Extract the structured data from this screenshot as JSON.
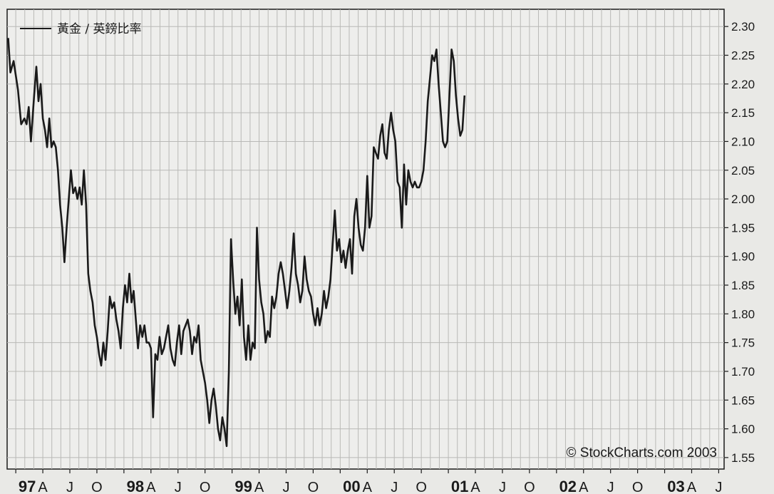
{
  "chart_data": {
    "type": "line",
    "legend": {
      "label": "黃金 / 英鎊比率",
      "position": "top-left"
    },
    "copyright": "© StockCharts.com 2003",
    "grid": true,
    "y_axis": {
      "position": "right",
      "ylim": [
        1.53,
        2.33
      ],
      "ticks": [
        "1.55",
        "1.60",
        "1.65",
        "1.70",
        "1.75",
        "1.80",
        "1.85",
        "1.90",
        "1.95",
        "2.00",
        "2.05",
        "2.10",
        "2.15",
        "2.20",
        "2.25",
        "2.30"
      ]
    },
    "x_axis": {
      "labels": [
        {
          "t": 1997.0,
          "label": "97",
          "year": true
        },
        {
          "t": 1997.25,
          "label": "A"
        },
        {
          "t": 1997.5,
          "label": "J"
        },
        {
          "t": 1997.75,
          "label": "O"
        },
        {
          "t": 1998.0,
          "label": "98",
          "year": true
        },
        {
          "t": 1998.25,
          "label": "A"
        },
        {
          "t": 1998.5,
          "label": "J"
        },
        {
          "t": 1998.75,
          "label": "O"
        },
        {
          "t": 1999.0,
          "label": "99",
          "year": true
        },
        {
          "t": 1999.25,
          "label": "A"
        },
        {
          "t": 1999.5,
          "label": "J"
        },
        {
          "t": 1999.75,
          "label": "O"
        },
        {
          "t": 2000.0,
          "label": "00",
          "year": true
        },
        {
          "t": 2000.25,
          "label": "A"
        },
        {
          "t": 2000.5,
          "label": "J"
        },
        {
          "t": 2000.75,
          "label": "O"
        },
        {
          "t": 2001.0,
          "label": "01",
          "year": true
        },
        {
          "t": 2001.25,
          "label": "A"
        },
        {
          "t": 2001.5,
          "label": "J"
        },
        {
          "t": 2001.75,
          "label": "O"
        },
        {
          "t": 2002.0,
          "label": "02",
          "year": true
        },
        {
          "t": 2002.25,
          "label": "A"
        },
        {
          "t": 2002.5,
          "label": "J"
        },
        {
          "t": 2002.75,
          "label": "O"
        },
        {
          "t": 2003.0,
          "label": "03",
          "year": true
        },
        {
          "t": 2003.25,
          "label": "A"
        },
        {
          "t": 2003.5,
          "label": "J"
        }
      ],
      "range": [
        1996.92,
        2003.55
      ]
    },
    "series": [
      {
        "color": "#1a1a1a",
        "points": [
          [
            1996.93,
            2.28
          ],
          [
            1996.95,
            2.22
          ],
          [
            1996.98,
            2.24
          ],
          [
            1997.02,
            2.19
          ],
          [
            1997.05,
            2.13
          ],
          [
            1997.08,
            2.14
          ],
          [
            1997.1,
            2.13
          ],
          [
            1997.12,
            2.16
          ],
          [
            1997.14,
            2.1
          ],
          [
            1997.17,
            2.18
          ],
          [
            1997.19,
            2.23
          ],
          [
            1997.21,
            2.17
          ],
          [
            1997.23,
            2.2
          ],
          [
            1997.25,
            2.14
          ],
          [
            1997.27,
            2.12
          ],
          [
            1997.29,
            2.09
          ],
          [
            1997.31,
            2.14
          ],
          [
            1997.33,
            2.09
          ],
          [
            1997.35,
            2.1
          ],
          [
            1997.37,
            2.09
          ],
          [
            1997.39,
            2.05
          ],
          [
            1997.41,
            1.99
          ],
          [
            1997.43,
            1.95
          ],
          [
            1997.45,
            1.89
          ],
          [
            1997.47,
            1.95
          ],
          [
            1997.49,
            2.0
          ],
          [
            1997.51,
            2.05
          ],
          [
            1997.53,
            2.01
          ],
          [
            1997.55,
            2.02
          ],
          [
            1997.57,
            2.0
          ],
          [
            1997.59,
            2.02
          ],
          [
            1997.61,
            1.99
          ],
          [
            1997.63,
            2.05
          ],
          [
            1997.65,
            1.99
          ],
          [
            1997.67,
            1.87
          ],
          [
            1997.69,
            1.84
          ],
          [
            1997.71,
            1.82
          ],
          [
            1997.73,
            1.78
          ],
          [
            1997.75,
            1.76
          ],
          [
            1997.77,
            1.73
          ],
          [
            1997.79,
            1.71
          ],
          [
            1997.81,
            1.75
          ],
          [
            1997.83,
            1.72
          ],
          [
            1997.85,
            1.77
          ],
          [
            1997.87,
            1.83
          ],
          [
            1997.89,
            1.81
          ],
          [
            1997.91,
            1.82
          ],
          [
            1997.93,
            1.79
          ],
          [
            1997.95,
            1.77
          ],
          [
            1997.97,
            1.74
          ],
          [
            1997.99,
            1.81
          ],
          [
            1998.01,
            1.85
          ],
          [
            1998.03,
            1.82
          ],
          [
            1998.05,
            1.87
          ],
          [
            1998.07,
            1.82
          ],
          [
            1998.09,
            1.84
          ],
          [
            1998.11,
            1.79
          ],
          [
            1998.13,
            1.74
          ],
          [
            1998.15,
            1.78
          ],
          [
            1998.17,
            1.76
          ],
          [
            1998.19,
            1.78
          ],
          [
            1998.21,
            1.75
          ],
          [
            1998.23,
            1.75
          ],
          [
            1998.25,
            1.74
          ],
          [
            1998.27,
            1.62
          ],
          [
            1998.29,
            1.73
          ],
          [
            1998.31,
            1.72
          ],
          [
            1998.33,
            1.76
          ],
          [
            1998.35,
            1.73
          ],
          [
            1998.37,
            1.74
          ],
          [
            1998.39,
            1.76
          ],
          [
            1998.41,
            1.78
          ],
          [
            1998.43,
            1.74
          ],
          [
            1998.45,
            1.72
          ],
          [
            1998.47,
            1.71
          ],
          [
            1998.49,
            1.75
          ],
          [
            1998.51,
            1.78
          ],
          [
            1998.53,
            1.73
          ],
          [
            1998.55,
            1.77
          ],
          [
            1998.57,
            1.78
          ],
          [
            1998.59,
            1.79
          ],
          [
            1998.61,
            1.77
          ],
          [
            1998.63,
            1.73
          ],
          [
            1998.65,
            1.76
          ],
          [
            1998.67,
            1.75
          ],
          [
            1998.69,
            1.78
          ],
          [
            1998.71,
            1.72
          ],
          [
            1998.73,
            1.7
          ],
          [
            1998.75,
            1.68
          ],
          [
            1998.77,
            1.65
          ],
          [
            1998.79,
            1.61
          ],
          [
            1998.81,
            1.65
          ],
          [
            1998.83,
            1.67
          ],
          [
            1998.85,
            1.64
          ],
          [
            1998.87,
            1.6
          ],
          [
            1998.89,
            1.58
          ],
          [
            1998.91,
            1.62
          ],
          [
            1998.93,
            1.6
          ],
          [
            1998.95,
            1.57
          ],
          [
            1998.97,
            1.7
          ],
          [
            1998.99,
            1.93
          ],
          [
            1999.01,
            1.86
          ],
          [
            1999.03,
            1.8
          ],
          [
            1999.05,
            1.83
          ],
          [
            1999.07,
            1.78
          ],
          [
            1999.09,
            1.86
          ],
          [
            1999.11,
            1.76
          ],
          [
            1999.13,
            1.72
          ],
          [
            1999.15,
            1.78
          ],
          [
            1999.17,
            1.72
          ],
          [
            1999.19,
            1.75
          ],
          [
            1999.21,
            1.74
          ],
          [
            1999.23,
            1.95
          ],
          [
            1999.25,
            1.86
          ],
          [
            1999.27,
            1.82
          ],
          [
            1999.29,
            1.8
          ],
          [
            1999.31,
            1.75
          ],
          [
            1999.33,
            1.77
          ],
          [
            1999.35,
            1.76
          ],
          [
            1999.37,
            1.83
          ],
          [
            1999.39,
            1.81
          ],
          [
            1999.41,
            1.83
          ],
          [
            1999.43,
            1.87
          ],
          [
            1999.45,
            1.89
          ],
          [
            1999.47,
            1.87
          ],
          [
            1999.49,
            1.84
          ],
          [
            1999.51,
            1.81
          ],
          [
            1999.53,
            1.84
          ],
          [
            1999.55,
            1.88
          ],
          [
            1999.57,
            1.94
          ],
          [
            1999.59,
            1.87
          ],
          [
            1999.61,
            1.85
          ],
          [
            1999.63,
            1.82
          ],
          [
            1999.65,
            1.84
          ],
          [
            1999.67,
            1.9
          ],
          [
            1999.69,
            1.86
          ],
          [
            1999.71,
            1.84
          ],
          [
            1999.73,
            1.83
          ],
          [
            1999.75,
            1.8
          ],
          [
            1999.77,
            1.78
          ],
          [
            1999.79,
            1.81
          ],
          [
            1999.81,
            1.78
          ],
          [
            1999.83,
            1.8
          ],
          [
            1999.85,
            1.84
          ],
          [
            1999.87,
            1.81
          ],
          [
            1999.89,
            1.83
          ],
          [
            1999.91,
            1.86
          ],
          [
            1999.93,
            1.92
          ],
          [
            1999.95,
            1.98
          ],
          [
            1999.97,
            1.91
          ],
          [
            1999.99,
            1.93
          ],
          [
            2000.01,
            1.89
          ],
          [
            2000.03,
            1.91
          ],
          [
            2000.05,
            1.88
          ],
          [
            2000.07,
            1.91
          ],
          [
            2000.09,
            1.93
          ],
          [
            2000.11,
            1.87
          ],
          [
            2000.13,
            1.97
          ],
          [
            2000.15,
            2.0
          ],
          [
            2000.17,
            1.95
          ],
          [
            2000.19,
            1.92
          ],
          [
            2000.21,
            1.91
          ],
          [
            2000.23,
            1.95
          ],
          [
            2000.25,
            2.04
          ],
          [
            2000.27,
            1.95
          ],
          [
            2000.29,
            1.97
          ],
          [
            2000.31,
            2.09
          ],
          [
            2000.33,
            2.08
          ],
          [
            2000.35,
            2.07
          ],
          [
            2000.37,
            2.11
          ],
          [
            2000.39,
            2.13
          ],
          [
            2000.41,
            2.08
          ],
          [
            2000.43,
            2.07
          ],
          [
            2000.45,
            2.12
          ],
          [
            2000.47,
            2.15
          ],
          [
            2000.49,
            2.12
          ],
          [
            2000.51,
            2.1
          ],
          [
            2000.53,
            2.03
          ],
          [
            2000.55,
            2.02
          ],
          [
            2000.57,
            1.95
          ],
          [
            2000.59,
            2.06
          ],
          [
            2000.61,
            1.99
          ],
          [
            2000.63,
            2.05
          ],
          [
            2000.65,
            2.03
          ],
          [
            2000.67,
            2.02
          ],
          [
            2000.69,
            2.03
          ],
          [
            2000.71,
            2.02
          ],
          [
            2000.73,
            2.02
          ],
          [
            2000.75,
            2.03
          ],
          [
            2000.77,
            2.05
          ],
          [
            2000.79,
            2.1
          ],
          [
            2000.81,
            2.17
          ],
          [
            2000.83,
            2.21
          ],
          [
            2000.85,
            2.25
          ],
          [
            2000.87,
            2.24
          ],
          [
            2000.89,
            2.26
          ],
          [
            2000.91,
            2.2
          ],
          [
            2000.93,
            2.15
          ],
          [
            2000.95,
            2.1
          ],
          [
            2000.97,
            2.09
          ],
          [
            2000.99,
            2.1
          ],
          [
            2001.01,
            2.18
          ],
          [
            2001.03,
            2.26
          ],
          [
            2001.05,
            2.24
          ],
          [
            2001.07,
            2.18
          ],
          [
            2001.09,
            2.14
          ],
          [
            2001.11,
            2.11
          ],
          [
            2001.13,
            2.12
          ],
          [
            2001.15,
            2.18
          ]
        ]
      }
    ]
  }
}
